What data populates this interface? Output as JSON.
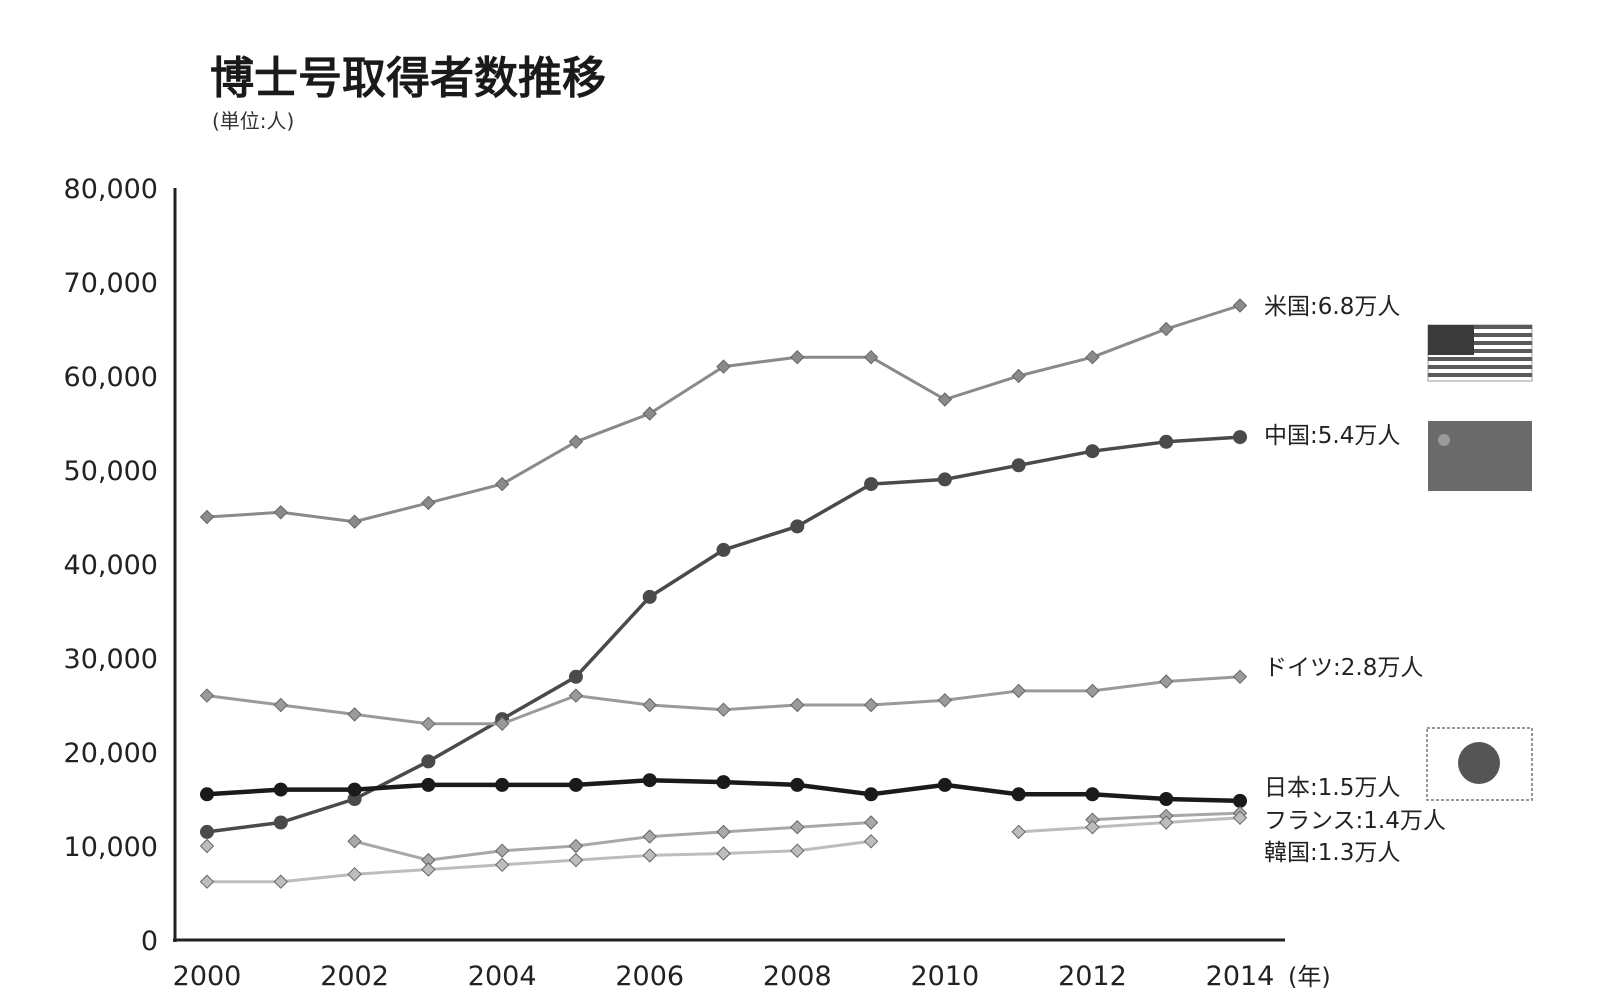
{
  "chart_data": {
    "type": "line",
    "title": "博士号取得者数推移",
    "subtitle": "(単位:人)",
    "xlabel": "(年)",
    "ylabel": "",
    "ylim": [
      0,
      80000
    ],
    "yticks": [
      0,
      10000,
      20000,
      30000,
      40000,
      50000,
      60000,
      70000,
      80000
    ],
    "ytick_labels": [
      "0",
      "10,000",
      "20,000",
      "30,000",
      "40,000",
      "50,000",
      "60,000",
      "70,000",
      "80,000"
    ],
    "xlim": [
      2000,
      2014
    ],
    "xticks": [
      2000,
      2002,
      2004,
      2006,
      2008,
      2010,
      2012,
      2014
    ],
    "xtick_labels": [
      "2000",
      "2002",
      "2004",
      "2006",
      "2008",
      "2010",
      "2012",
      "2014"
    ],
    "grid": false,
    "legend": "direct labels at right end",
    "series": [
      {
        "key": "usa",
        "label": "米国:6.8万人",
        "color": "#8a8a8a",
        "marker": "diamond",
        "width": 3,
        "points": [
          [
            2000,
            45000
          ],
          [
            2001,
            45500
          ],
          [
            2002,
            44500
          ],
          [
            2003,
            46500
          ],
          [
            2004,
            48500
          ],
          [
            2005,
            53000
          ],
          [
            2006,
            56000
          ],
          [
            2007,
            61000
          ],
          [
            2008,
            62000
          ],
          [
            2009,
            62000
          ],
          [
            2010,
            57500
          ],
          [
            2011,
            60000
          ],
          [
            2012,
            62000
          ],
          [
            2013,
            65000
          ],
          [
            2014,
            67500
          ]
        ],
        "flag": "usa-flag-icon"
      },
      {
        "key": "china",
        "label": "中国:5.4万人",
        "color": "#4a4a4a",
        "marker": "circle",
        "width": 3.5,
        "points": [
          [
            2000,
            11500
          ],
          [
            2001,
            12500
          ],
          [
            2002,
            15000
          ],
          [
            2003,
            19000
          ],
          [
            2004,
            23500
          ],
          [
            2005,
            28000
          ],
          [
            2006,
            36500
          ],
          [
            2007,
            41500
          ],
          [
            2008,
            44000
          ],
          [
            2009,
            48500
          ],
          [
            2010,
            49000
          ],
          [
            2011,
            50500
          ],
          [
            2012,
            52000
          ],
          [
            2013,
            53000
          ],
          [
            2014,
            53500
          ]
        ],
        "flag": "china-flag-icon"
      },
      {
        "key": "germany",
        "label": "ドイツ:2.8万人",
        "color": "#9a9a9a",
        "marker": "diamond",
        "width": 3,
        "points": [
          [
            2000,
            26000
          ],
          [
            2001,
            25000
          ],
          [
            2002,
            24000
          ],
          [
            2003,
            23000
          ],
          [
            2004,
            23000
          ],
          [
            2005,
            26000
          ],
          [
            2006,
            25000
          ],
          [
            2007,
            24500
          ],
          [
            2008,
            25000
          ],
          [
            2009,
            25000
          ],
          [
            2010,
            25500
          ],
          [
            2011,
            26500
          ],
          [
            2012,
            26500
          ],
          [
            2013,
            27500
          ],
          [
            2014,
            28000
          ]
        ]
      },
      {
        "key": "japan",
        "label": "日本:1.5万人",
        "color": "#1a1a1a",
        "marker": "circle",
        "width": 4.5,
        "points": [
          [
            2000,
            15500
          ],
          [
            2001,
            16000
          ],
          [
            2002,
            16000
          ],
          [
            2003,
            16500
          ],
          [
            2004,
            16500
          ],
          [
            2005,
            16500
          ],
          [
            2006,
            17000
          ],
          [
            2007,
            16800
          ],
          [
            2008,
            16500
          ],
          [
            2009,
            15500
          ],
          [
            2010,
            16500
          ],
          [
            2011,
            15500
          ],
          [
            2012,
            15500
          ],
          [
            2013,
            15000
          ],
          [
            2014,
            14800
          ]
        ],
        "flag": "japan-flag-icon"
      },
      {
        "key": "france",
        "label": "フランス:1.4万人",
        "color": "#a8a8a8",
        "marker": "diamond",
        "width": 3,
        "segments": [
          [
            [
              2002,
              10500
            ],
            [
              2003,
              8500
            ],
            [
              2004,
              9500
            ],
            [
              2005,
              10000
            ],
            [
              2006,
              11000
            ],
            [
              2007,
              11500
            ],
            [
              2008,
              12000
            ],
            [
              2009,
              12500
            ]
          ],
          [
            [
              2012,
              12800
            ],
            [
              2013,
              13200
            ],
            [
              2014,
              13500
            ]
          ]
        ]
      },
      {
        "key": "korea",
        "label": "韓国:1.3万人",
        "color": "#bdbdbd",
        "marker": "diamond",
        "width": 3,
        "segments": [
          [
            [
              2000,
              10000
            ]
          ],
          [
            [
              2000,
              6200
            ],
            [
              2001,
              6200
            ],
            [
              2002,
              7000
            ],
            [
              2003,
              7500
            ],
            [
              2004,
              8000
            ],
            [
              2005,
              8500
            ],
            [
              2006,
              9000
            ],
            [
              2007,
              9200
            ],
            [
              2008,
              9500
            ],
            [
              2009,
              10500
            ]
          ],
          [
            [
              2011,
              11500
            ],
            [
              2012,
              12000
            ],
            [
              2013,
              12500
            ],
            [
              2014,
              13000
            ]
          ]
        ]
      }
    ]
  },
  "flag_colors": {
    "usa_dark": "#3a3a3a",
    "usa_stripe": "#5a5a5a",
    "china": "#6a6a6a",
    "japan_disc": "#555555",
    "japan_border": "#777777"
  }
}
